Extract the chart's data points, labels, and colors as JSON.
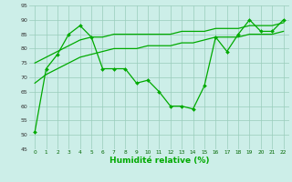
{
  "line_jagged": [
    51,
    73,
    78,
    85,
    88,
    84,
    73,
    73,
    73,
    68,
    69,
    65,
    60,
    60,
    59,
    67,
    84,
    79,
    85,
    90,
    86,
    86,
    90
  ],
  "line_upper": [
    75,
    77,
    79,
    81,
    83,
    84,
    84,
    85,
    85,
    85,
    85,
    85,
    85,
    86,
    86,
    86,
    87,
    87,
    87,
    88,
    88,
    88,
    89
  ],
  "line_lower": [
    68,
    71,
    73,
    75,
    77,
    78,
    79,
    80,
    80,
    80,
    81,
    81,
    81,
    82,
    82,
    83,
    84,
    84,
    84,
    85,
    85,
    85,
    86
  ],
  "x": [
    0,
    1,
    2,
    3,
    4,
    5,
    6,
    7,
    8,
    9,
    10,
    11,
    12,
    13,
    14,
    15,
    16,
    17,
    18,
    19,
    20,
    21,
    22
  ],
  "xlabel": "Humidité relative (%)",
  "ylim": [
    45,
    95
  ],
  "yticks": [
    45,
    50,
    55,
    60,
    65,
    70,
    75,
    80,
    85,
    90,
    95
  ],
  "line_color": "#00aa00",
  "bg_color": "#cceee8",
  "grid_color": "#99ccbb",
  "tick_color": "#006600"
}
